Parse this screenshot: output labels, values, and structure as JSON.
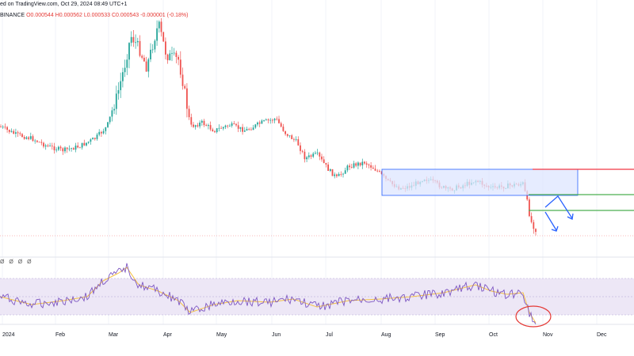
{
  "header": {
    "line1": "ed on TradingView.com, Oct 29, 2024 08:49 UTC+1",
    "exchange": "BINANCE",
    "ohlc": {
      "o": "O0.000544",
      "h": "H0.000562",
      "l": "L0.000533",
      "c": "C0.000543",
      "chg": "-0.000001 (-0.18%)"
    }
  },
  "indicator_label": "Ø Ø Ø Ø",
  "colors": {
    "up": "#26a69a",
    "down": "#ef5350",
    "box_fill": "#dde6ff",
    "box_stroke": "#2962ff",
    "red_line": "#f23645",
    "green_line": "#4caf50",
    "arrow": "#2962ff",
    "rsi_line": "#7e57c2",
    "rsi_ma": "#f5c242",
    "rsi_band": "#ede7f6",
    "circle": "#e53935"
  },
  "chart_data": {
    "type": "candlestick",
    "x_labels": [
      "2024",
      "Feb",
      "Mar",
      "Apr",
      "May",
      "Jun",
      "Jul",
      "Aug",
      "Sep",
      "Oct",
      "Nov",
      "Dec"
    ],
    "price_close_profile": [
      {
        "month": "Jan",
        "close": 0.0009
      },
      {
        "month": "Feb",
        "close": 0.00088
      },
      {
        "month": "Mar",
        "close": 0.00135
      },
      {
        "month": "Apr",
        "close": 0.00095
      },
      {
        "month": "May",
        "close": 0.00092
      },
      {
        "month": "Jun",
        "close": 0.0009
      },
      {
        "month": "Jul",
        "close": 0.00075
      },
      {
        "month": "Aug",
        "close": 0.00066
      },
      {
        "month": "Sep",
        "close": 0.00067
      },
      {
        "month": "Oct",
        "close": 0.00066
      },
      {
        "month": "Nov",
        "close": 0.00054
      }
    ],
    "rsi_profile": [
      45,
      42,
      72,
      40,
      38,
      44,
      39,
      50,
      45,
      52,
      28
    ],
    "annotations": [
      "range-box",
      "resistance-line",
      "support-line-1",
      "support-line-2",
      "zigzag-arrow",
      "down-arrow",
      "oversold-circle"
    ]
  }
}
